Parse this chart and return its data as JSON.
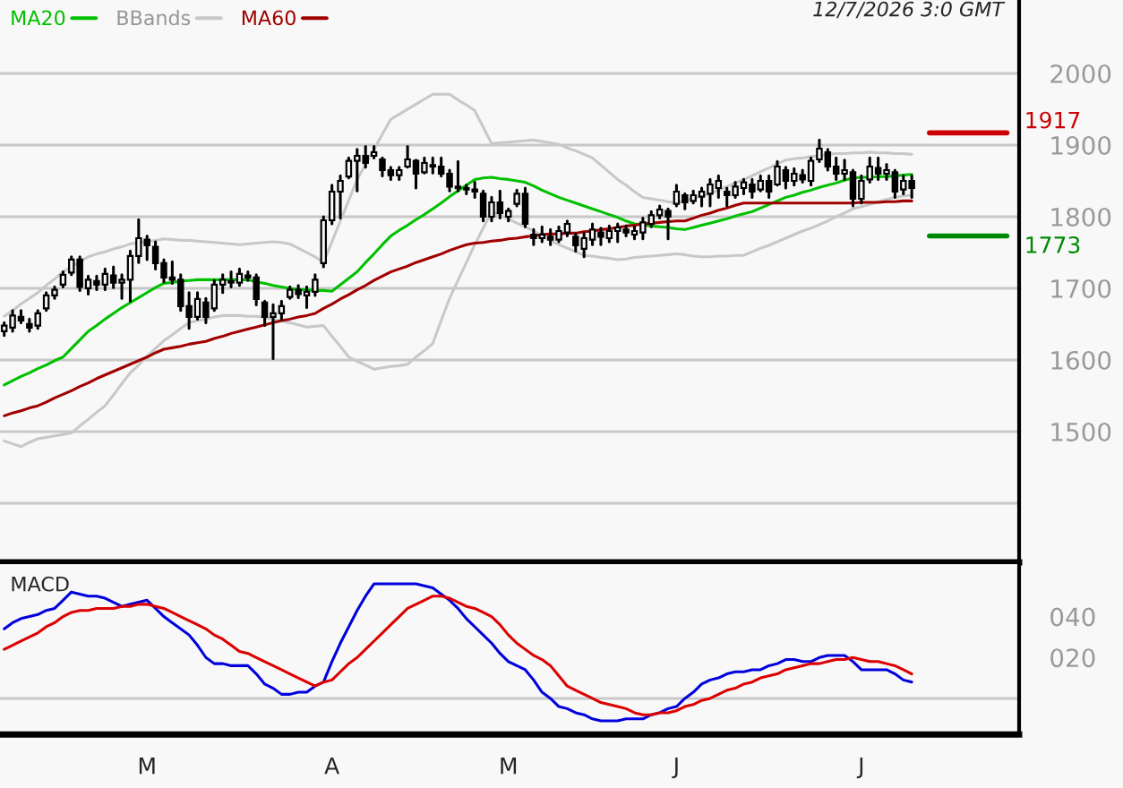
{
  "chart_data": [
    {
      "type": "candlestick",
      "categories": [
        null,
        null,
        null,
        null,
        null,
        null,
        null,
        null,
        null,
        null,
        null,
        null,
        null,
        null,
        null,
        null,
        null,
        null,
        null,
        null,
        null,
        null,
        null,
        null,
        null,
        null,
        null,
        null,
        null,
        null,
        null,
        null,
        null,
        null,
        null,
        null,
        null,
        null,
        null,
        null,
        null,
        null,
        null,
        null,
        null,
        null,
        null,
        null,
        null,
        null,
        null,
        null,
        null,
        null,
        null,
        null,
        null,
        null,
        null,
        null,
        null,
        null,
        null,
        null,
        null,
        null,
        null,
        null,
        null,
        null,
        null,
        null,
        null,
        null,
        null,
        null,
        null,
        null,
        null,
        null,
        null,
        null,
        null,
        null,
        null,
        null,
        null,
        null,
        null,
        null,
        null,
        null,
        null,
        null,
        null,
        null,
        null,
        null,
        null,
        null,
        null,
        null,
        null,
        null,
        null,
        null,
        null,
        null,
        null
      ],
      "ohlc": [
        [
          1640,
          1652,
          1634,
          1648
        ],
        [
          1645,
          1669,
          1640,
          1662
        ],
        [
          1660,
          1669,
          1652,
          1655
        ],
        [
          1650,
          1657,
          1640,
          1645
        ],
        [
          1648,
          1669,
          1644,
          1665
        ],
        [
          1672,
          1694,
          1669,
          1690
        ],
        [
          1690,
          1702,
          1686,
          1698
        ],
        [
          1705,
          1723,
          1702,
          1719
        ],
        [
          1722,
          1744,
          1719,
          1740
        ],
        [
          1740,
          1744,
          1697,
          1702
        ],
        [
          1700,
          1717,
          1692,
          1712
        ],
        [
          1710,
          1717,
          1698,
          1705
        ],
        [
          1705,
          1727,
          1698,
          1720
        ],
        [
          1718,
          1730,
          1701,
          1708
        ],
        [
          1708,
          1719,
          1686,
          1712
        ],
        [
          1712,
          1752,
          1682,
          1745
        ],
        [
          1745,
          1796,
          1736,
          1770
        ],
        [
          1768,
          1773,
          1740,
          1760
        ],
        [
          1758,
          1765,
          1727,
          1735
        ],
        [
          1735,
          1740,
          1709,
          1715
        ],
        [
          1715,
          1737,
          1707,
          1712
        ],
        [
          1712,
          1719,
          1669,
          1675
        ],
        [
          1675,
          1694,
          1644,
          1660
        ],
        [
          1660,
          1694,
          1657,
          1685
        ],
        [
          1680,
          1686,
          1652,
          1660
        ],
        [
          1672,
          1711,
          1669,
          1705
        ],
        [
          1705,
          1719,
          1694,
          1712
        ],
        [
          1710,
          1723,
          1702,
          1708
        ],
        [
          1708,
          1727,
          1704,
          1720
        ],
        [
          1718,
          1723,
          1711,
          1715
        ],
        [
          1715,
          1719,
          1677,
          1685
        ],
        [
          1680,
          1682,
          1648,
          1660
        ],
        [
          1660,
          1677,
          1602,
          1665
        ],
        [
          1665,
          1682,
          1657,
          1675
        ],
        [
          1688,
          1702,
          1686,
          1698
        ],
        [
          1698,
          1704,
          1687,
          1692
        ],
        [
          1690,
          1702,
          1673,
          1695
        ],
        [
          1695,
          1719,
          1690,
          1712
        ],
        [
          1735,
          1800,
          1730,
          1795
        ],
        [
          1795,
          1844,
          1790,
          1835
        ],
        [
          1835,
          1857,
          1798,
          1850
        ],
        [
          1856,
          1882,
          1854,
          1878
        ],
        [
          1878,
          1894,
          1836,
          1885
        ],
        [
          1885,
          1898,
          1869,
          1875
        ],
        [
          1885,
          1898,
          1882,
          1890
        ],
        [
          1880,
          1882,
          1857,
          1865
        ],
        [
          1865,
          1869,
          1852,
          1858
        ],
        [
          1858,
          1869,
          1852,
          1865
        ],
        [
          1870,
          1898,
          1869,
          1880
        ],
        [
          1878,
          1879,
          1840,
          1860
        ],
        [
          1862,
          1882,
          1861,
          1875
        ],
        [
          1872,
          1882,
          1861,
          1870
        ],
        [
          1870,
          1882,
          1857,
          1860
        ],
        [
          1860,
          1865,
          1836,
          1842
        ],
        [
          1842,
          1877,
          1836,
          1840
        ],
        [
          1840,
          1844,
          1832,
          1838
        ],
        [
          1838,
          1848,
          1827,
          1835
        ],
        [
          1832,
          1836,
          1794,
          1800
        ],
        [
          1800,
          1827,
          1794,
          1820
        ],
        [
          1820,
          1836,
          1798,
          1805
        ],
        [
          1800,
          1811,
          1794,
          1808
        ],
        [
          1818,
          1837,
          1815,
          1832
        ],
        [
          1832,
          1840,
          1786,
          1790
        ],
        [
          1775,
          1782,
          1761,
          1770
        ],
        [
          1770,
          1786,
          1765,
          1775
        ],
        [
          1772,
          1782,
          1761,
          1768
        ],
        [
          1768,
          1786,
          1765,
          1780
        ],
        [
          1778,
          1794,
          1773,
          1790
        ],
        [
          1772,
          1776,
          1752,
          1760
        ],
        [
          1755,
          1777,
          1744,
          1770
        ],
        [
          1768,
          1790,
          1761,
          1782
        ],
        [
          1778,
          1784,
          1761,
          1772
        ],
        [
          1770,
          1787,
          1765,
          1780
        ],
        [
          1780,
          1790,
          1765,
          1785
        ],
        [
          1782,
          1787,
          1773,
          1778
        ],
        [
          1775,
          1786,
          1769,
          1780
        ],
        [
          1778,
          1798,
          1769,
          1792
        ],
        [
          1790,
          1807,
          1786,
          1802
        ],
        [
          1802,
          1815,
          1798,
          1810
        ],
        [
          1808,
          1811,
          1769,
          1800
        ],
        [
          1818,
          1844,
          1815,
          1835
        ],
        [
          1830,
          1832,
          1811,
          1820
        ],
        [
          1822,
          1836,
          1819,
          1830
        ],
        [
          1828,
          1840,
          1815,
          1835
        ],
        [
          1832,
          1852,
          1815,
          1845
        ],
        [
          1840,
          1857,
          1827,
          1850
        ],
        [
          1835,
          1840,
          1815,
          1830
        ],
        [
          1830,
          1848,
          1827,
          1842
        ],
        [
          1840,
          1852,
          1832,
          1848
        ],
        [
          1845,
          1852,
          1827,
          1835
        ],
        [
          1838,
          1857,
          1836,
          1850
        ],
        [
          1850,
          1857,
          1827,
          1835
        ],
        [
          1845,
          1877,
          1844,
          1870
        ],
        [
          1865,
          1869,
          1840,
          1850
        ],
        [
          1850,
          1867,
          1844,
          1860
        ],
        [
          1858,
          1865,
          1848,
          1852
        ],
        [
          1850,
          1882,
          1844,
          1878
        ],
        [
          1880,
          1907,
          1877,
          1895
        ],
        [
          1890,
          1894,
          1865,
          1870
        ],
        [
          1870,
          1882,
          1852,
          1860
        ],
        [
          1860,
          1879,
          1852,
          1865
        ],
        [
          1862,
          1865,
          1815,
          1825
        ],
        [
          1825,
          1857,
          1819,
          1850
        ],
        [
          1852,
          1882,
          1848,
          1870
        ],
        [
          1868,
          1882,
          1852,
          1860
        ],
        [
          1860,
          1873,
          1852,
          1865
        ],
        [
          1862,
          1865,
          1827,
          1835
        ],
        [
          1838,
          1857,
          1832,
          1850
        ],
        [
          1850,
          1857,
          1827,
          1840
        ]
      ],
      "series": [
        {
          "name": "MA20",
          "type": "line",
          "color": "#00c000",
          "values": [
            1565,
            1571,
            1577,
            1582,
            1588,
            1593,
            1599,
            1604,
            1616,
            1628,
            1640,
            1648,
            1657,
            1665,
            1673,
            1680,
            1687,
            1694,
            1701,
            1707,
            1708,
            1710,
            1711,
            1712,
            1712,
            1712,
            1712,
            1712,
            1712,
            1712,
            1709,
            1707,
            1704,
            1702,
            1700,
            1698,
            1698,
            1697,
            1697,
            1696,
            1705,
            1714,
            1723,
            1736,
            1748,
            1761,
            1773,
            1781,
            1788,
            1796,
            1803,
            1811,
            1819,
            1828,
            1836,
            1844,
            1852,
            1854,
            1855,
            1853,
            1852,
            1850,
            1848,
            1843,
            1837,
            1832,
            1827,
            1823,
            1819,
            1815,
            1811,
            1807,
            1803,
            1799,
            1794,
            1790,
            1789,
            1787,
            1786,
            1785,
            1783,
            1782,
            1785,
            1788,
            1791,
            1794,
            1797,
            1801,
            1804,
            1807,
            1812,
            1817,
            1822,
            1827,
            1830,
            1834,
            1837,
            1841,
            1844,
            1847,
            1851,
            1854,
            1855,
            1855,
            1856,
            1856,
            1857,
            1858,
            1859
          ]
        },
        {
          "name": "BBands",
          "type": "line",
          "color": "#c8c8c8",
          "values": [
            1661,
            1669,
            1678,
            1686,
            1694,
            1704,
            1713,
            1723,
            1730,
            1737,
            1744,
            1748,
            1751,
            1755,
            1758,
            1762,
            1764,
            1765,
            1767,
            1769,
            1768,
            1767,
            1767,
            1766,
            1765,
            1764,
            1763,
            1762,
            1761,
            1762,
            1763,
            1764,
            1765,
            1764,
            1762,
            1756,
            1750,
            1744,
            1736,
            1765,
            1794,
            1823,
            1852,
            1873,
            1894,
            1915,
            1936,
            1943,
            1950,
            1957,
            1964,
            1971,
            1971,
            1971,
            1963,
            1956,
            1948,
            1925,
            1902,
            1903,
            1904,
            1905,
            1906,
            1907,
            1905,
            1903,
            1901,
            1896,
            1892,
            1887,
            1882,
            1872,
            1862,
            1852,
            1844,
            1835,
            1827,
            1825,
            1823,
            1821,
            1819,
            1822,
            1826,
            1829,
            1832,
            1837,
            1842,
            1847,
            1852,
            1857,
            1863,
            1868,
            1874,
            1879,
            1881,
            1882,
            1884,
            1885,
            1887,
            1888,
            1888,
            1889,
            1889,
            1890,
            1889,
            1889,
            1888,
            1888,
            1887
          ]
        },
        {
          "type": "line",
          "color": "#c8c8c8",
          "values": [
            1487,
            1483,
            1479,
            1485,
            1490,
            1492,
            1494,
            1496,
            1498,
            1508,
            1517,
            1527,
            1536,
            1551,
            1567,
            1582,
            1593,
            1605,
            1616,
            1627,
            1635,
            1644,
            1652,
            1655,
            1657,
            1660,
            1662,
            1662,
            1662,
            1661,
            1661,
            1659,
            1657,
            1654,
            1652,
            1649,
            1646,
            1647,
            1648,
            1633,
            1619,
            1604,
            1598,
            1593,
            1587,
            1589,
            1591,
            1592,
            1594,
            1604,
            1613,
            1623,
            1655,
            1686,
            1711,
            1736,
            1761,
            1784,
            1807,
            1802,
            1797,
            1791,
            1786,
            1780,
            1774,
            1767,
            1761,
            1756,
            1751,
            1746,
            1745,
            1743,
            1742,
            1740,
            1741,
            1743,
            1744,
            1745,
            1746,
            1747,
            1748,
            1747,
            1745,
            1744,
            1744,
            1745,
            1745,
            1746,
            1746,
            1751,
            1756,
            1760,
            1765,
            1770,
            1775,
            1780,
            1784,
            1789,
            1794,
            1800,
            1805,
            1811,
            1814,
            1817,
            1821,
            1824,
            1827,
            1829,
            1830
          ]
        },
        {
          "name": "MA60",
          "type": "line",
          "color": "#a00000",
          "values": [
            1522,
            1526,
            1529,
            1533,
            1536,
            1541,
            1547,
            1552,
            1557,
            1563,
            1568,
            1574,
            1579,
            1584,
            1589,
            1594,
            1599,
            1604,
            1610,
            1615,
            1617,
            1619,
            1622,
            1624,
            1626,
            1630,
            1633,
            1637,
            1640,
            1643,
            1646,
            1649,
            1652,
            1655,
            1657,
            1660,
            1662,
            1665,
            1672,
            1678,
            1685,
            1691,
            1698,
            1704,
            1711,
            1717,
            1723,
            1727,
            1731,
            1736,
            1740,
            1744,
            1748,
            1753,
            1757,
            1761,
            1763,
            1764,
            1766,
            1767,
            1769,
            1770,
            1772,
            1773,
            1775,
            1776,
            1776,
            1777,
            1777,
            1779,
            1780,
            1782,
            1783,
            1785,
            1787,
            1788,
            1790,
            1791,
            1792,
            1793,
            1794,
            1794,
            1798,
            1802,
            1805,
            1809,
            1812,
            1816,
            1819,
            1819,
            1819,
            1819,
            1819,
            1819,
            1819,
            1819,
            1819,
            1819,
            1819,
            1819,
            1819,
            1819,
            1820,
            1820,
            1820,
            1821,
            1821,
            1822,
            1822
          ]
        }
      ],
      "ref_lines": [
        {
          "axis": "y",
          "value": 1917,
          "label": "1917",
          "color": "#cc0000"
        },
        {
          "axis": "y",
          "value": 1773,
          "label": "1773",
          "color": "#008800"
        }
      ],
      "annotations": [
        "12/7/2026 3:0 GMT"
      ],
      "ylim": [
        1317.5,
        2102.5
      ],
      "yticks": [
        {
          "value": 1400,
          "label": null
        },
        1500,
        1600,
        1700,
        1800,
        1900,
        2000
      ],
      "grid": "y",
      "legend": "top left",
      "tick_labels": "y"
    },
    {
      "type": "line",
      "title": "MACD",
      "categories": [
        null,
        null,
        null,
        null,
        null,
        null,
        null,
        null,
        null,
        null,
        null,
        null,
        null,
        null,
        null,
        null,
        null,
        "M",
        null,
        null,
        null,
        null,
        null,
        null,
        null,
        null,
        null,
        null,
        null,
        null,
        null,
        null,
        null,
        null,
        null,
        null,
        null,
        null,
        null,
        "A",
        null,
        null,
        null,
        null,
        null,
        null,
        null,
        null,
        null,
        null,
        null,
        null,
        null,
        null,
        null,
        null,
        null,
        null,
        null,
        null,
        "M",
        null,
        null,
        null,
        null,
        null,
        null,
        null,
        null,
        null,
        null,
        null,
        null,
        null,
        null,
        null,
        null,
        null,
        null,
        null,
        "J",
        null,
        null,
        null,
        null,
        null,
        null,
        null,
        null,
        null,
        null,
        null,
        null,
        null,
        null,
        null,
        null,
        null,
        null,
        null,
        null,
        null,
        "J",
        null,
        null,
        null,
        null,
        null,
        null
      ],
      "series": [
        {
          "type": "line",
          "color": "#0000dd",
          "values": [
            34,
            37,
            39,
            40,
            41,
            43,
            44,
            48,
            52,
            51,
            50,
            50,
            49,
            47,
            45,
            46,
            47,
            48,
            44,
            40,
            37,
            34,
            31,
            26,
            20,
            17,
            17,
            16,
            16,
            16,
            12,
            7,
            5,
            2,
            2,
            3,
            3,
            6,
            8,
            18,
            27,
            35,
            43,
            50,
            56,
            56,
            56,
            56,
            56,
            56,
            55,
            54,
            51,
            48,
            44,
            39,
            35,
            31,
            27,
            22,
            18,
            16,
            14,
            9,
            3,
            0,
            -4,
            -5,
            -7,
            -8,
            -10,
            -11,
            -11,
            -11,
            -10,
            -10,
            -10,
            -8,
            -7,
            -5,
            -4,
            0,
            3,
            7,
            9,
            10,
            12,
            13,
            13,
            14,
            14,
            16,
            17,
            19,
            19,
            18,
            18,
            20,
            21,
            21,
            21,
            18,
            14,
            14,
            14,
            14,
            12,
            9,
            8
          ]
        },
        {
          "type": "line",
          "color": "#dd0000",
          "values": [
            24,
            26,
            28,
            30,
            32,
            35,
            37,
            40,
            42,
            43,
            43,
            44,
            44,
            44,
            45,
            45,
            46,
            46,
            45,
            44,
            42,
            40,
            38,
            36,
            34,
            31,
            29,
            26,
            23,
            22,
            20,
            18,
            16,
            14,
            12,
            10,
            8,
            6,
            8,
            9,
            13,
            17,
            20,
            24,
            28,
            32,
            36,
            40,
            44,
            46,
            48,
            50,
            50,
            49,
            47,
            45,
            44,
            42,
            40,
            36,
            31,
            27,
            24,
            21,
            19,
            16,
            11,
            6,
            4,
            2,
            0,
            -2,
            -3,
            -4,
            -5,
            -7,
            -8,
            -8,
            -7,
            -7,
            -6,
            -4,
            -3,
            -1,
            0,
            2,
            4,
            5,
            7,
            8,
            10,
            11,
            12,
            14,
            15,
            16,
            17,
            17,
            18,
            19,
            19,
            20,
            19,
            18,
            18,
            17,
            16,
            14,
            12
          ]
        }
      ],
      "ref_lines": [
        {
          "axis": "y",
          "value": 0,
          "color": "#c8c8c8"
        }
      ],
      "ylim": [
        -17.6,
        65.6
      ],
      "yticks": [
        {
          "value": 20,
          "label": "020"
        },
        {
          "value": 40,
          "label": "040"
        }
      ]
    }
  ]
}
